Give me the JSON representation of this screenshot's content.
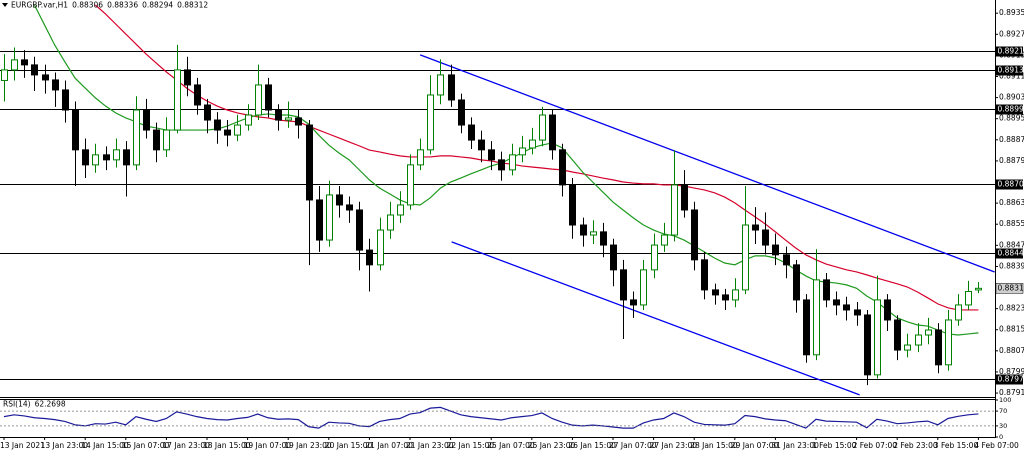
{
  "chart_data": {
    "type": "candlestick",
    "symbol": "EURGBP.var,H1",
    "x": [
      "13 Jan 2021",
      null,
      null,
      null,
      "13 Jan 23:00",
      null,
      null,
      null,
      "14 Jan 15:00",
      null,
      null,
      null,
      "15 Jan 07:00",
      null,
      null,
      null,
      "17 Jan 23:00",
      null,
      null,
      null,
      "18 Jan 15:00",
      null,
      null,
      null,
      "19 Jan 07:00",
      null,
      null,
      null,
      "19 Jan 23:00",
      null,
      null,
      null,
      "20 Jan 15:00",
      null,
      null,
      null,
      "21 Jan 07:00",
      null,
      null,
      null,
      "21 Jan 23:00",
      null,
      null,
      null,
      "22 Jan 15:00",
      null,
      null,
      null,
      "25 Jan 07:00",
      null,
      null,
      null,
      "25 Jan 23:00",
      null,
      null,
      null,
      "26 Jan 15:00",
      null,
      null,
      null,
      "27 Jan 07:00",
      null,
      null,
      null,
      "27 Jan 23:00",
      null,
      null,
      null,
      "28 Jan 15:00",
      null,
      null,
      null,
      "29 Jan 07:00",
      null,
      null,
      null,
      "31 Jan 23:00",
      null,
      null,
      null,
      "1 Feb 15:00",
      null,
      null,
      null,
      "2 Feb 07:00",
      null,
      null,
      null,
      "2 Feb 23:00",
      null,
      null,
      null,
      "3 Feb 15:00",
      null,
      null,
      null,
      "4 Feb 07:00"
    ],
    "ohlc": {
      "up_color": "#008000",
      "down_color": "#000000",
      "open": [
        0.891,
        0.8914,
        0.89178,
        0.89159,
        0.89121,
        0.89102,
        0.89064,
        0.88988,
        0.88837,
        0.8878,
        0.88818,
        0.88799,
        0.88837,
        0.8878,
        0.88988,
        0.88912,
        0.88837,
        0.88912,
        0.8914,
        0.89083,
        0.89007,
        0.8895,
        0.88912,
        0.88893,
        0.88931,
        0.88969,
        0.89083,
        0.88988,
        0.8895,
        0.88958,
        0.88931,
        0.88647,
        0.88495,
        0.88666,
        0.88628,
        0.88609,
        0.88457,
        0.88401,
        0.88533,
        0.8859,
        0.88628,
        0.8878,
        0.88837,
        0.89045,
        0.89121,
        0.89026,
        0.88931,
        0.88874,
        0.88837,
        0.88799,
        0.88761,
        0.88818,
        0.88844,
        0.88874,
        0.88969,
        0.88837,
        0.88704,
        0.88552,
        0.88514,
        0.88526,
        0.88476,
        0.88382,
        0.88268,
        0.88249,
        0.88382,
        0.88476,
        0.88514,
        0.88704,
        0.88609,
        0.8842,
        0.88306,
        0.88287,
        0.88268,
        0.88306,
        0.88552,
        0.88533,
        0.88476,
        0.88439,
        0.88401,
        0.88268,
        0.8806,
        0.88344,
        0.88268,
        0.88249,
        0.8823,
        0.88211,
        0.87984,
        0.88268,
        0.88192,
        0.88078,
        0.88097,
        0.88135,
        0.88154,
        0.88022,
        0.88192,
        0.88249,
        0.88306
      ],
      "high": [
        0.892,
        0.89225,
        0.89215,
        0.8919,
        0.8916,
        0.8913,
        0.891,
        0.8902,
        0.8888,
        0.8886,
        0.8885,
        0.8888,
        0.8887,
        0.8904,
        0.8903,
        0.8894,
        0.8896,
        0.89235,
        0.8919,
        0.8911,
        0.8903,
        0.8898,
        0.8895,
        0.8897,
        0.8901,
        0.8916,
        0.8911,
        0.8901,
        0.8902,
        0.8899,
        0.8895,
        0.887,
        0.8872,
        0.887,
        0.8866,
        0.8864,
        0.885,
        0.8858,
        0.8864,
        0.8868,
        0.8882,
        0.8888,
        0.8912,
        0.8918,
        0.8916,
        0.8905,
        0.8896,
        0.8891,
        0.8887,
        0.8883,
        0.8886,
        0.8889,
        0.8892,
        0.89,
        0.8899,
        0.8886,
        0.8873,
        0.8858,
        0.8857,
        0.8856,
        0.885,
        0.8842,
        0.883,
        0.8842,
        0.8852,
        0.8856,
        0.88835,
        0.8876,
        0.8864,
        0.8845,
        0.8833,
        0.8831,
        0.8835,
        0.887,
        0.8862,
        0.886,
        0.8852,
        0.8847,
        0.8842,
        0.8829,
        0.8846,
        0.8837,
        0.883,
        0.8828,
        0.8826,
        0.8823,
        0.8836,
        0.8829,
        0.8821,
        0.8814,
        0.8818,
        0.882,
        0.8818,
        0.8823,
        0.8829,
        0.8834,
        0.88336
      ],
      "low": [
        0.8902,
        0.891,
        0.8911,
        0.8906,
        0.8905,
        0.89,
        0.8894,
        0.887,
        0.8873,
        0.8875,
        0.8876,
        0.8877,
        0.8866,
        0.8876,
        0.8888,
        0.8879,
        0.8881,
        0.889,
        0.8904,
        0.8897,
        0.889,
        0.8886,
        0.8885,
        0.8887,
        0.8891,
        0.8895,
        0.8896,
        0.8891,
        0.8892,
        0.8888,
        0.884,
        0.8845,
        0.8847,
        0.8858,
        0.8856,
        0.8838,
        0.883,
        0.8838,
        0.885,
        0.8856,
        0.8861,
        0.8876,
        0.8882,
        0.8901,
        0.89,
        0.889,
        0.8884,
        0.8879,
        0.8876,
        0.8872,
        0.8874,
        0.8879,
        0.8882,
        0.8885,
        0.888,
        0.8866,
        0.885,
        0.8847,
        0.8848,
        0.8843,
        0.8832,
        0.8812,
        0.882,
        0.8823,
        0.8835,
        0.8845,
        0.8849,
        0.8858,
        0.8838,
        0.8827,
        0.8825,
        0.8823,
        0.8824,
        0.8829,
        0.8848,
        0.8844,
        0.884,
        0.8835,
        0.8822,
        0.8803,
        0.8804,
        0.8824,
        0.8821,
        0.8819,
        0.8817,
        0.87945,
        0.8797,
        0.8815,
        0.8804,
        0.8805,
        0.8807,
        0.881,
        0.8799,
        0.88,
        0.8817,
        0.8823,
        0.88294
      ],
      "close": [
        0.8914,
        0.89178,
        0.89159,
        0.89121,
        0.89102,
        0.89064,
        0.88988,
        0.88837,
        0.8878,
        0.88818,
        0.88799,
        0.88837,
        0.8878,
        0.88988,
        0.88912,
        0.88837,
        0.88912,
        0.8914,
        0.89083,
        0.89007,
        0.8895,
        0.88912,
        0.88893,
        0.88931,
        0.88969,
        0.89083,
        0.88988,
        0.8895,
        0.88958,
        0.88931,
        0.88647,
        0.88495,
        0.88666,
        0.88628,
        0.88609,
        0.88457,
        0.88401,
        0.88533,
        0.8859,
        0.88628,
        0.8878,
        0.88837,
        0.89045,
        0.89121,
        0.89026,
        0.88931,
        0.88874,
        0.88837,
        0.88799,
        0.88761,
        0.88818,
        0.88844,
        0.88874,
        0.88969,
        0.88837,
        0.88704,
        0.88552,
        0.88514,
        0.88526,
        0.88476,
        0.88382,
        0.88268,
        0.88249,
        0.88382,
        0.88476,
        0.88514,
        0.88704,
        0.88609,
        0.8842,
        0.88306,
        0.88287,
        0.88268,
        0.88306,
        0.88552,
        0.88533,
        0.88476,
        0.88439,
        0.88401,
        0.88268,
        0.8806,
        0.88344,
        0.88268,
        0.88249,
        0.8823,
        0.88211,
        0.87984,
        0.88268,
        0.88192,
        0.88078,
        0.88097,
        0.88135,
        0.88154,
        0.88022,
        0.88192,
        0.88249,
        0.883,
        0.88312
      ]
    },
    "overlays": [
      {
        "color": "#d6002a",
        "values": [
          null,
          null,
          null,
          null,
          null,
          null,
          null,
          null,
          null,
          0.89386,
          0.89352,
          0.89314,
          0.89276,
          0.89238,
          0.892,
          0.89166,
          0.89132,
          0.89102,
          0.89071,
          0.89045,
          0.89022,
          0.89003,
          0.88988,
          0.88977,
          0.88969,
          0.88962,
          0.88958,
          0.8895,
          0.88946,
          0.88943,
          0.88927,
          0.88912,
          0.88897,
          0.88882,
          0.88867,
          0.88852,
          0.88836,
          0.88829,
          0.88821,
          0.88814,
          0.8881,
          0.8881,
          0.8881,
          0.88814,
          0.88814,
          0.8881,
          0.88806,
          0.88799,
          0.88795,
          0.88787,
          0.88783,
          0.88776,
          0.88772,
          0.88768,
          0.88764,
          0.88761,
          0.88753,
          0.88746,
          0.88738,
          0.8873,
          0.88723,
          0.88715,
          0.88711,
          0.88708,
          0.88708,
          0.88704,
          0.88704,
          0.887,
          0.88692,
          0.88685,
          0.88674,
          0.88658,
          0.88636,
          0.88609,
          0.88583,
          0.88556,
          0.88526,
          0.88495,
          0.88465,
          0.88439,
          0.8842,
          0.88404,
          0.88393,
          0.88382,
          0.88374,
          0.88363,
          0.88351,
          0.8834,
          0.88329,
          0.88317,
          0.88298,
          0.88276,
          0.88253,
          0.88238,
          0.8823,
          0.8823,
          0.8823
        ]
      },
      {
        "color": "#1e9a1e",
        "values": [
          null,
          null,
          null,
          0.89386,
          0.8931,
          0.89234,
          0.8917,
          0.89109,
          0.89071,
          0.89034,
          0.89003,
          0.88977,
          0.88958,
          0.88943,
          0.88927,
          0.8892,
          0.88912,
          0.88912,
          0.88912,
          0.88912,
          0.88912,
          0.88916,
          0.88927,
          0.88943,
          0.88958,
          0.88969,
          0.88973,
          0.88969,
          0.88969,
          0.88962,
          0.88935,
          0.88893,
          0.88855,
          0.88825,
          0.88799,
          0.88761,
          0.88723,
          0.88692,
          0.8867,
          0.88647,
          0.88632,
          0.88628,
          0.88655,
          0.88692,
          0.88715,
          0.8873,
          0.88746,
          0.88761,
          0.88776,
          0.88787,
          0.88806,
          0.88825,
          0.88844,
          0.88855,
          0.88863,
          0.88844,
          0.88799,
          0.88753,
          0.88715,
          0.88677,
          0.88639,
          0.88609,
          0.88579,
          0.88552,
          0.88533,
          0.88518,
          0.88511,
          0.88495,
          0.88473,
          0.8845,
          0.88427,
          0.88408,
          0.88401,
          0.8842,
          0.88435,
          0.88435,
          0.88427,
          0.88408,
          0.88382,
          0.88359,
          0.8834,
          0.88336,
          0.88332,
          0.88325,
          0.88312,
          0.88283,
          0.8826,
          0.8823,
          0.882,
          0.88185,
          0.88173,
          0.88169,
          0.88154,
          0.88139,
          0.88135,
          0.88139,
          0.88143
        ]
      }
    ],
    "levels": [
      0.89213,
      0.89138,
      0.88992,
      0.88706,
      0.88446,
      0.8797
    ],
    "level_color": "#000000",
    "channel": {
      "color": "#0000ee",
      "lines": [
        {
          "x": [
            41,
            97.6
          ],
          "y": [
            0.89197,
            0.88374
          ]
        },
        {
          "x": [
            44.1,
            84.3
          ],
          "y": [
            0.88488,
            0.87908
          ]
        }
      ]
    },
    "ylim": [
      0.879,
      0.89405
    ],
    "yticks": [
      0.89355,
      0.89275,
      0.89195,
      0.89115,
      0.89035,
      0.88955,
      0.88875,
      0.88795,
      0.88635,
      0.88555,
      0.88475,
      0.88395,
      0.88235,
      0.88155,
      0.88075,
      0.87995,
      0.87915
    ],
    "rsi": {
      "title": "RSI(14)",
      "color": "#1a1a9a",
      "ylim": [
        0,
        100
      ],
      "yticks": [
        100,
        70,
        30,
        0
      ],
      "values": [
        55,
        60,
        57,
        52,
        50,
        47,
        42,
        33,
        30,
        36,
        35,
        40,
        33,
        55,
        48,
        42,
        50,
        68,
        62,
        55,
        50,
        47,
        46,
        50,
        53,
        62,
        52,
        48,
        49,
        47,
        28,
        24,
        40,
        38,
        37,
        30,
        28,
        42,
        47,
        50,
        62,
        66,
        78,
        80,
        70,
        60,
        55,
        52,
        49,
        46,
        52,
        55,
        58,
        65,
        50,
        40,
        32,
        30,
        32,
        30,
        27,
        24,
        24,
        38,
        46,
        50,
        65,
        55,
        40,
        34,
        33,
        32,
        36,
        58,
        55,
        49,
        46,
        44,
        34,
        24,
        48,
        43,
        42,
        41,
        40,
        25,
        48,
        43,
        36,
        38,
        41,
        43,
        33,
        50,
        56,
        60,
        62.2698
      ]
    }
  }
}
